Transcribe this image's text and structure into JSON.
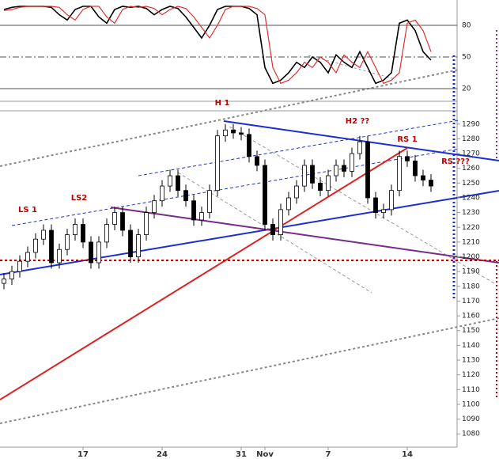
{
  "chart_data": [
    {
      "type": "candlestick",
      "categories": [
        null,
        null,
        null,
        null,
        null,
        null,
        null,
        null,
        null,
        null,
        "17",
        null,
        null,
        null,
        null,
        null,
        null,
        null,
        null,
        null,
        "24",
        null,
        null,
        null,
        null,
        null,
        null,
        null,
        null,
        null,
        "31",
        null,
        null,
        "Nov",
        null,
        null,
        null,
        null,
        null,
        null,
        null,
        "7",
        null,
        null,
        null,
        null,
        null,
        null,
        null,
        null,
        null,
        "14",
        null,
        null,
        null
      ],
      "open": [
        1182,
        1185,
        1190,
        1197,
        1203,
        1212,
        1218,
        1196,
        1205,
        1215,
        1222,
        1210,
        1196,
        1210,
        1222,
        1230,
        1218,
        1200,
        1215,
        1230,
        1238,
        1248,
        1255,
        1245,
        1238,
        1225,
        1230,
        1245,
        1282,
        1286,
        1284,
        1283,
        1268,
        1262,
        1222,
        1215,
        1232,
        1240,
        1248,
        1262,
        1250,
        1245,
        1255,
        1262,
        1258,
        1270,
        1278,
        1240,
        1230,
        1232,
        1245,
        1268,
        1265,
        1255,
        1252
      ],
      "high": [
        1189,
        1194,
        1201,
        1207,
        1216,
        1222,
        1222,
        1209,
        1219,
        1226,
        1226,
        1214,
        1214,
        1226,
        1234,
        1234,
        1222,
        1219,
        1234,
        1242,
        1252,
        1259,
        1259,
        1249,
        1242,
        1234,
        1249,
        1286,
        1290,
        1290,
        1288,
        1287,
        1272,
        1266,
        1226,
        1236,
        1244,
        1252,
        1266,
        1266,
        1254,
        1259,
        1266,
        1266,
        1274,
        1282,
        1282,
        1244,
        1236,
        1249,
        1272,
        1272,
        1269,
        1259,
        1256
      ],
      "low": [
        1178,
        1181,
        1186,
        1193,
        1199,
        1208,
        1192,
        1192,
        1201,
        1211,
        1206,
        1192,
        1192,
        1206,
        1218,
        1214,
        1196,
        1196,
        1211,
        1226,
        1234,
        1244,
        1241,
        1234,
        1221,
        1221,
        1226,
        1241,
        1278,
        1280,
        1279,
        1264,
        1258,
        1218,
        1211,
        1211,
        1228,
        1236,
        1244,
        1246,
        1241,
        1241,
        1251,
        1254,
        1254,
        1266,
        1236,
        1226,
        1226,
        1228,
        1241,
        1261,
        1251,
        1248,
        1244
      ],
      "close": [
        1185,
        1190,
        1197,
        1203,
        1212,
        1218,
        1196,
        1205,
        1215,
        1222,
        1210,
        1196,
        1210,
        1222,
        1230,
        1218,
        1200,
        1215,
        1230,
        1238,
        1248,
        1255,
        1245,
        1238,
        1225,
        1230,
        1245,
        1282,
        1286,
        1284,
        1283,
        1268,
        1262,
        1222,
        1215,
        1232,
        1240,
        1248,
        1262,
        1250,
        1245,
        1255,
        1262,
        1258,
        1270,
        1278,
        1240,
        1230,
        1232,
        1245,
        1268,
        1265,
        1255,
        1252,
        1248
      ],
      "ylim": [
        1071,
        1299
      ],
      "yticks": [
        1080,
        1090,
        1100,
        1110,
        1120,
        1130,
        1140,
        1150,
        1160,
        1170,
        1180,
        1190,
        1200,
        1210,
        1220,
        1230,
        1240,
        1250,
        1260,
        1270,
        1280,
        1290
      ],
      "annotations": [
        "LS 1",
        "LS2",
        "H 1",
        "H2 ??",
        "RS 1",
        "RS ???"
      ]
    },
    {
      "type": "line",
      "series": [
        {
          "color": "#000000",
          "values": [
            95,
            97,
            98,
            98,
            98,
            98,
            97,
            90,
            85,
            95,
            98,
            98,
            88,
            82,
            95,
            98,
            97,
            98,
            96,
            90,
            95,
            98,
            96,
            88,
            78,
            68,
            80,
            95,
            98,
            98,
            98,
            96,
            90,
            40,
            25,
            28,
            35,
            45,
            40,
            50,
            45,
            35,
            52,
            45,
            40,
            55,
            40,
            25,
            28,
            35,
            82,
            85,
            75,
            55,
            47
          ]
        },
        {
          "color": "#e03030",
          "values": [
            94,
            95,
            97,
            98,
            98,
            98,
            98,
            97,
            90,
            85,
            95,
            98,
            98,
            88,
            82,
            95,
            98,
            97,
            98,
            96,
            90,
            95,
            98,
            96,
            88,
            78,
            68,
            80,
            95,
            98,
            98,
            98,
            96,
            90,
            40,
            25,
            28,
            35,
            45,
            40,
            50,
            45,
            35,
            52,
            45,
            40,
            55,
            40,
            25,
            28,
            35,
            82,
            85,
            75,
            55
          ]
        }
      ],
      "ylim": [
        8,
        104
      ],
      "yticks": [
        20,
        50,
        80
      ]
    }
  ]
}
